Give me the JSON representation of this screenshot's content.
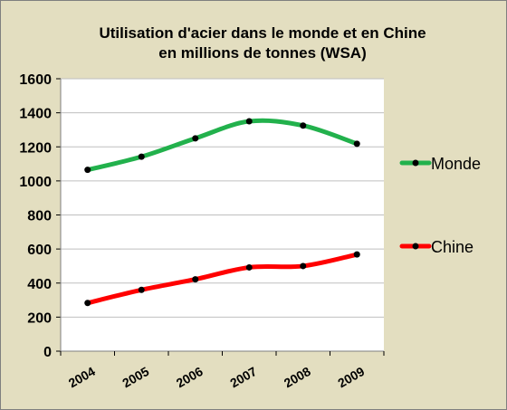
{
  "chart_data": {
    "type": "line",
    "title_line1": "Utilisation d'acier dans le monde et en Chine",
    "title_line2": "en  millions de tonnes (WSA)",
    "categories": [
      "2004",
      "2005",
      "2006",
      "2007",
      "2008",
      "2009"
    ],
    "yticks": [
      "0",
      "200",
      "400",
      "600",
      "800",
      "1000",
      "1200",
      "1400",
      "1600"
    ],
    "ylim": [
      0,
      1600
    ],
    "grid": true,
    "legend_position": "right",
    "series": [
      {
        "name": "Monde",
        "values": [
          1065,
          1142,
          1250,
          1350,
          1325,
          1218
        ],
        "color": "#22b14c"
      },
      {
        "name": "Chine",
        "values": [
          283,
          360,
          422,
          492,
          500,
          568
        ],
        "color": "#ff0000"
      }
    ],
    "marker_color": "#000000",
    "plot_background": "#ffffff",
    "frame_background": "#e3dec0",
    "grid_color": "#bfbfbf"
  }
}
